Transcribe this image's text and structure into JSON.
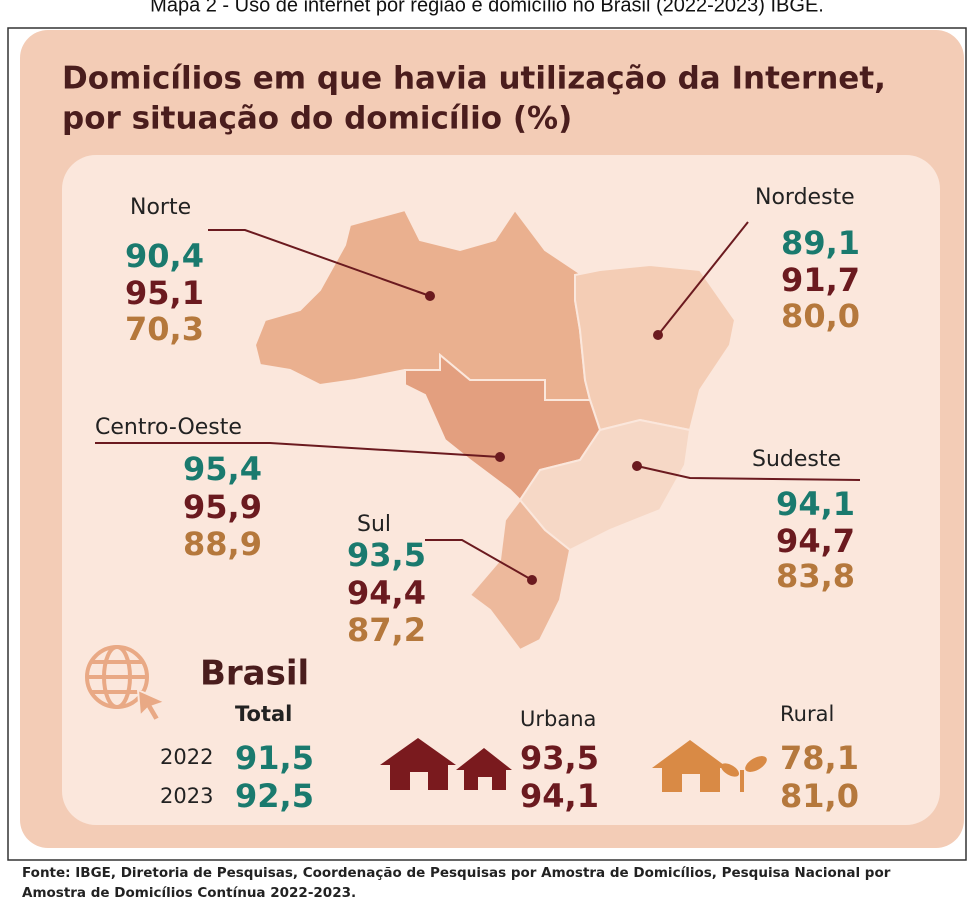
{
  "caption": "Mapa 2 - Uso de internet por região e domicílio no Brasil (2022-2023) IBGE.",
  "title": [
    "Domicílios em que havia utilização da Internet,",
    "por situação do domicílio (%)"
  ],
  "regions": [
    {
      "name": "Norte",
      "values": [
        "90,4",
        "95,1",
        "70,3"
      ]
    },
    {
      "name": "Nordeste",
      "values": [
        "89,1",
        "91,7",
        "80,0"
      ]
    },
    {
      "name": "Centro-Oeste",
      "values": [
        "95,4",
        "95,9",
        "88,9"
      ]
    },
    {
      "name": "Sudeste",
      "values": [
        "94,1",
        "94,7",
        "83,8"
      ]
    },
    {
      "name": "Sul",
      "values": [
        "93,5",
        "94,4",
        "87,2"
      ]
    }
  ],
  "brasil": {
    "label": "Brasil",
    "total_label": "Total",
    "years": [
      "2022",
      "2023"
    ],
    "total": [
      "91,5",
      "92,5"
    ],
    "urbana_label": "Urbana",
    "urbana": [
      "93,5",
      "94,1"
    ],
    "rural_label": "Rural",
    "rural": [
      "78,1",
      "81,0"
    ]
  },
  "source": [
    "Fonte: IBGE, Diretoria de Pesquisas, Coordenação de Pesquisas por Amostra de Domicílios, Pesquisa Nacional por",
    "Amostra de Domicílios Contínua 2022-2023."
  ]
}
